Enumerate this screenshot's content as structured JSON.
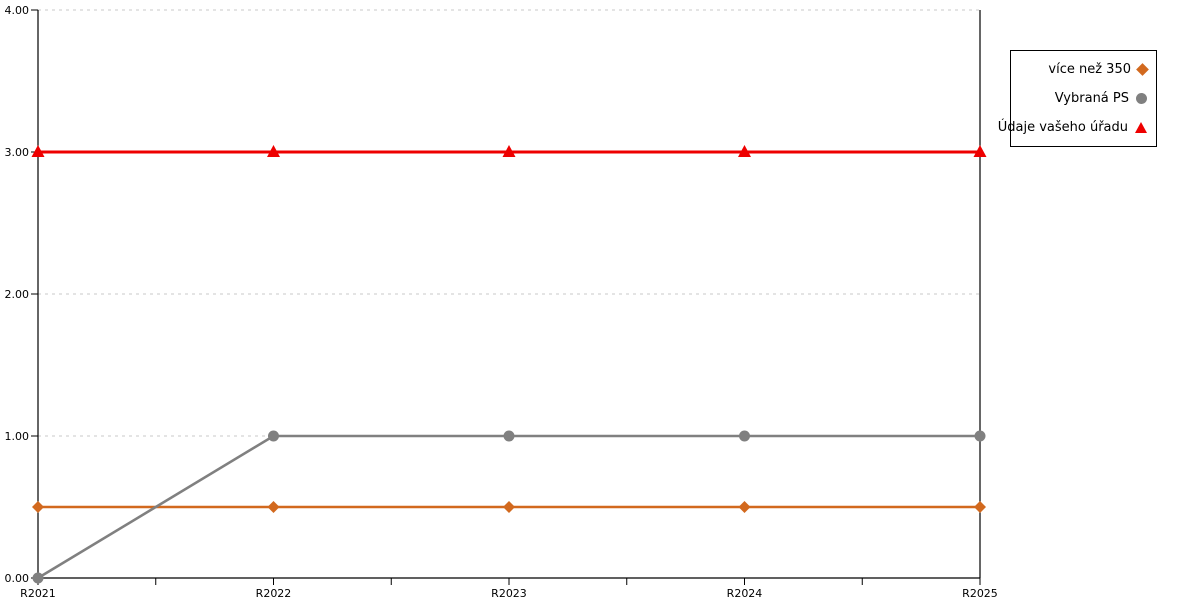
{
  "chart_data": {
    "type": "line",
    "title": "",
    "xlabel": "",
    "ylabel": "",
    "categories": [
      "R2021",
      "R2022",
      "R2023",
      "R2024",
      "R2025"
    ],
    "series": [
      {
        "name": "více než 350",
        "values": [
          0.5,
          0.5,
          0.5,
          0.5,
          0.5
        ],
        "color": "#d2691e",
        "marker": "diamond"
      },
      {
        "name": "Vybraná PS",
        "values": [
          0,
          1,
          1,
          1,
          1
        ],
        "color": "#808080",
        "marker": "circle"
      },
      {
        "name": "Údaje vašeho úřadu",
        "values": [
          3,
          3,
          3,
          3,
          3
        ],
        "color": "#ee0000",
        "marker": "triangle"
      }
    ],
    "ylim": [
      0,
      4
    ],
    "y_tick_values": [
      0,
      1,
      2,
      3,
      4
    ],
    "y_tick_labels": [
      "0.00",
      "1.00",
      "2.00",
      "3.00",
      "4.00"
    ],
    "x_minor_ticks_per_interval": 2,
    "grid": true,
    "grid_color": "#c9c9c9",
    "axis_color": "#000000",
    "legend_position": "right"
  }
}
